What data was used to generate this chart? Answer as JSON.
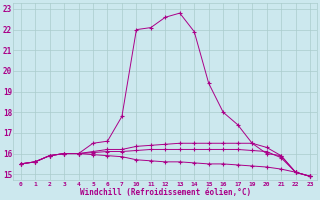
{
  "title": "Windchill (Refroidissement éolien,°C)",
  "bg_color": "#cce8ee",
  "grid_color": "#aacccc",
  "line_color": "#aa0088",
  "x_values": [
    0,
    1,
    2,
    3,
    4,
    5,
    6,
    7,
    10,
    11,
    12,
    13,
    14,
    15,
    16,
    17,
    19,
    20,
    21,
    22,
    23
  ],
  "x_tick_labels": [
    "0",
    "1",
    "2",
    "3",
    "4",
    "5",
    "6",
    "7",
    "10",
    "11",
    "12",
    "13",
    "14",
    "15",
    "16",
    "17",
    "19",
    "20",
    "21",
    "22",
    "23"
  ],
  "ylim": [
    14.7,
    23.3
  ],
  "y_ticks": [
    15,
    16,
    17,
    18,
    19,
    20,
    21,
    22,
    23
  ],
  "series": [
    {
      "x": [
        0,
        1,
        2,
        3,
        4,
        5,
        6,
        7,
        10,
        11,
        12,
        13,
        14,
        15,
        16,
        17,
        19,
        20,
        21,
        22,
        23
      ],
      "y": [
        15.5,
        15.6,
        15.9,
        16.0,
        16.0,
        16.5,
        16.6,
        17.8,
        22.0,
        22.1,
        22.6,
        22.8,
        21.9,
        19.4,
        18.0,
        17.4,
        16.5,
        16.0,
        15.9,
        15.1,
        14.9
      ]
    },
    {
      "x": [
        0,
        1,
        2,
        3,
        4,
        5,
        6,
        7,
        10,
        11,
        12,
        13,
        14,
        15,
        16,
        17,
        19,
        20,
        21,
        22,
        23
      ],
      "y": [
        15.5,
        15.6,
        15.9,
        16.0,
        16.0,
        16.1,
        16.2,
        16.2,
        16.35,
        16.4,
        16.45,
        16.5,
        16.5,
        16.5,
        16.5,
        16.5,
        16.5,
        16.3,
        15.9,
        15.1,
        14.9
      ]
    },
    {
      "x": [
        0,
        1,
        2,
        3,
        4,
        5,
        6,
        7,
        10,
        11,
        12,
        13,
        14,
        15,
        16,
        17,
        19,
        20,
        21,
        22,
        23
      ],
      "y": [
        15.5,
        15.6,
        15.9,
        16.0,
        16.0,
        16.05,
        16.1,
        16.1,
        16.15,
        16.2,
        16.2,
        16.2,
        16.2,
        16.2,
        16.2,
        16.2,
        16.15,
        16.1,
        15.8,
        15.1,
        14.9
      ]
    },
    {
      "x": [
        0,
        1,
        2,
        3,
        4,
        5,
        6,
        7,
        10,
        11,
        12,
        13,
        14,
        15,
        16,
        17,
        19,
        20,
        21,
        22,
        23
      ],
      "y": [
        15.5,
        15.6,
        15.9,
        16.0,
        16.0,
        15.95,
        15.9,
        15.85,
        15.7,
        15.65,
        15.6,
        15.6,
        15.55,
        15.5,
        15.5,
        15.45,
        15.4,
        15.35,
        15.25,
        15.1,
        14.9
      ]
    }
  ]
}
